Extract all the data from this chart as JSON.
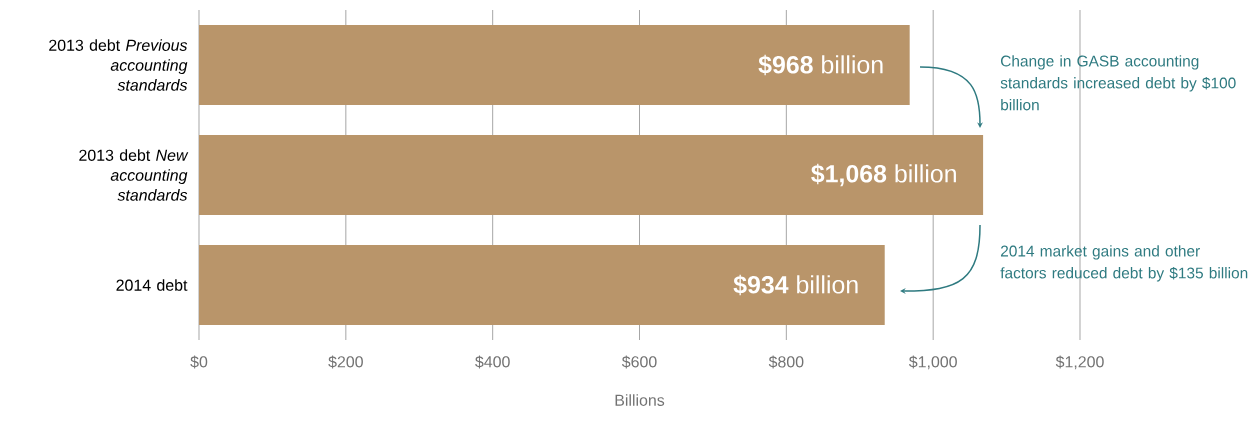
{
  "chart_data": {
    "type": "bar",
    "orientation": "horizontal",
    "categories": [
      "2013 debt *Previous accounting standards*",
      "2013 debt *New accounting standards*",
      "2014 debt"
    ],
    "values": [
      968,
      1068,
      934
    ],
    "value_labels": [
      "**$968** billion",
      "**$1,068** billion",
      "**$934** billion"
    ],
    "color": "#b9956a",
    "xlim": [
      0,
      1200
    ],
    "xticks": [
      {
        "value": 0,
        "label": "$0"
      },
      {
        "value": 200,
        "label": "$200"
      },
      {
        "value": 400,
        "label": "$400"
      },
      {
        "value": 600,
        "label": "$600"
      },
      {
        "value": 800,
        "label": "$800"
      },
      {
        "value": 1000,
        "label": "$1,000"
      },
      {
        "value": 1200,
        "label": "$1,200"
      }
    ],
    "xlabel": "Billions",
    "grid": "x",
    "annotations": [
      "Change in GASB accounting standards increased debt by $100 billion",
      "2014 market gains and other factors reduced debt by $135 billion"
    ]
  }
}
